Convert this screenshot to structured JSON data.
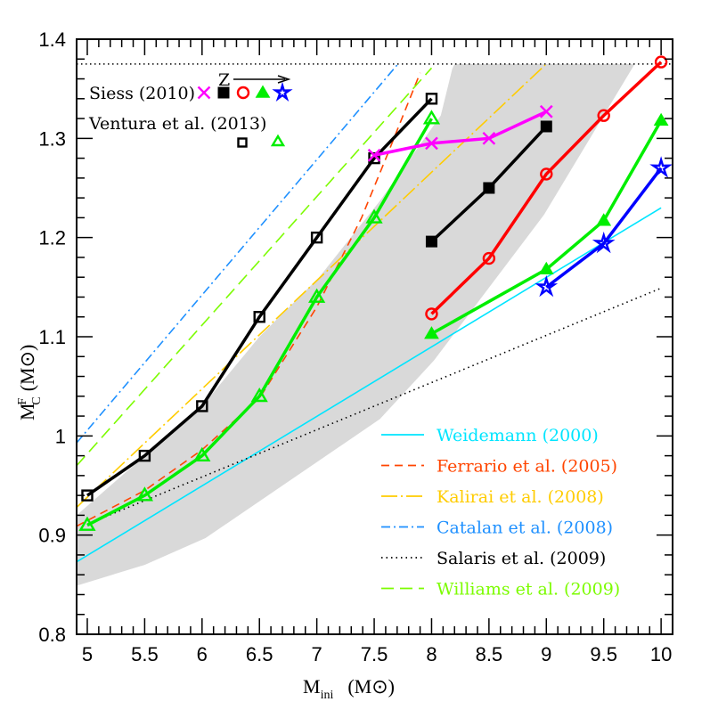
{
  "chart_data": {
    "type": "line",
    "xlabel": "M",
    "xlabel_sub": "ini",
    "xlabel_unit": "(M⊙)",
    "ylabel": "M",
    "ylabel_sup": "F",
    "ylabel_sub": "C",
    "ylabel_unit": "(M⊙)",
    "xlim": [
      4.907,
      10.1
    ],
    "ylim": [
      0.8,
      1.4
    ],
    "xticks": [
      "5",
      "5.5",
      "6",
      "6.5",
      "7",
      "7.5",
      "8",
      "8.5",
      "9",
      "9.5",
      "10"
    ],
    "yticks": [
      "0.8",
      "0.9",
      "1",
      "1.1",
      "1.2",
      "1.3",
      "1.4"
    ],
    "grid": false,
    "shaded_band": {
      "color": "#d9d9d9",
      "upper": [
        [
          4.907,
          0.92
        ],
        [
          5.5,
          0.98
        ],
        [
          6,
          1.03
        ],
        [
          6.5,
          1.1
        ],
        [
          7.02,
          1.16
        ],
        [
          7.55,
          1.237
        ],
        [
          8.08,
          1.323
        ],
        [
          8.18,
          1.37
        ],
        [
          8.2,
          1.375
        ],
        [
          9.77,
          1.375
        ]
      ],
      "lower": [
        [
          9.77,
          1.375
        ],
        [
          8.98,
          1.223
        ],
        [
          8.02,
          1.076
        ],
        [
          7.55,
          1.017
        ],
        [
          6.03,
          0.897
        ],
        [
          5.5,
          0.87
        ],
        [
          4.907,
          0.849
        ]
      ]
    },
    "reference_line": {
      "y": 1.375,
      "style": "dotted",
      "color": "#000000"
    },
    "legend_top": {
      "siess_label": "Siess (2010)",
      "ventura_label": "Ventura et al. (2013)",
      "z_label": "Z"
    },
    "model_series": [
      {
        "group": "ventura",
        "marker": "open-square",
        "color": "#000000",
        "x": [
          5,
          5.5,
          6,
          6.5,
          7,
          7.5,
          8
        ],
        "y": [
          0.94,
          0.98,
          1.03,
          1.12,
          1.2,
          1.28,
          1.34
        ]
      },
      {
        "group": "ventura",
        "marker": "open-triangle",
        "color": "#00ee00",
        "x": [
          5,
          5.5,
          6,
          6.5,
          7,
          7.5,
          8
        ],
        "y": [
          0.91,
          0.94,
          0.98,
          1.04,
          1.14,
          1.22,
          1.32
        ]
      },
      {
        "group": "siess",
        "marker": "cross",
        "color": "#ff00ff",
        "x": [
          7.5,
          8,
          8.5,
          9
        ],
        "y": [
          1.283,
          1.295,
          1.3,
          1.327
        ]
      },
      {
        "group": "siess",
        "marker": "filled-square",
        "color": "#000000",
        "x": [
          8,
          8.5,
          9
        ],
        "y": [
          1.196,
          1.25,
          1.312
        ]
      },
      {
        "group": "siess",
        "marker": "open-circle",
        "color": "#ff0000",
        "x": [
          8,
          8.5,
          9,
          9.5,
          10
        ],
        "y": [
          1.123,
          1.179,
          1.264,
          1.323,
          1.377
        ]
      },
      {
        "group": "siess",
        "marker": "filled-triangle",
        "color": "#00ee00",
        "x": [
          8,
          9,
          9.5,
          10
        ],
        "y": [
          1.103,
          1.168,
          1.217,
          1.318
        ]
      },
      {
        "group": "siess",
        "marker": "open-star",
        "color": "#0000ff",
        "x": [
          9,
          9.5,
          10
        ],
        "y": [
          1.15,
          1.194,
          1.27
        ]
      }
    ],
    "relations": [
      {
        "name": "Weidemann (2000)",
        "color": "#00e5ff",
        "style": "solid",
        "points": [
          [
            4.907,
            0.873
          ],
          [
            10,
            1.23
          ]
        ]
      },
      {
        "name": "Ferrario et al. (2005)",
        "color": "#ff4500",
        "style": "dashed",
        "points": [
          [
            4.907,
            0.909
          ],
          [
            5.5,
            0.945
          ],
          [
            6,
            0.986
          ],
          [
            6.5,
            1.038
          ],
          [
            7,
            1.13
          ],
          [
            7.39,
            1.22
          ],
          [
            7.62,
            1.285
          ],
          [
            7.9,
            1.366
          ]
        ]
      },
      {
        "name": "Kalirai et al. (2008)",
        "color": "#ffcc00",
        "style": "dashdot-long",
        "points": [
          [
            4.907,
            0.928
          ],
          [
            8.99,
            1.374
          ]
        ]
      },
      {
        "name": "Catalan et al. (2008)",
        "color": "#1e90ff",
        "style": "dashdot",
        "points": [
          [
            4.907,
            0.993
          ],
          [
            7.7,
            1.374
          ]
        ]
      },
      {
        "name": "Salaris et al. (2009)",
        "color": "#000000",
        "style": "dotted",
        "points": [
          [
            5,
            0.911
          ],
          [
            10,
            1.149
          ]
        ]
      },
      {
        "name": "Williams et al. (2009)",
        "color": "#7cfc00",
        "style": "longdash",
        "points": [
          [
            4.907,
            0.97
          ],
          [
            8.0,
            1.371
          ]
        ]
      }
    ]
  }
}
